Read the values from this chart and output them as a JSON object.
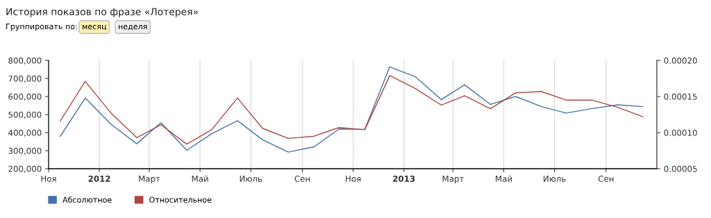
{
  "chart_data": {
    "type": "line",
    "title": "История показов по фразе «Лотерея»",
    "annotations": [
      "Группировать по:",
      "месяц",
      "неделя"
    ],
    "x": [
      "2011-11-15",
      "2011-12-15",
      "2012-01-15",
      "2012-02-15",
      "2012-03-15",
      "2012-04-15",
      "2012-05-15",
      "2012-06-15",
      "2012-07-15",
      "2012-08-15",
      "2012-09-15",
      "2012-10-15",
      "2012-11-15",
      "2012-12-15",
      "2013-01-15",
      "2013-02-15",
      "2013-03-15",
      "2013-04-15",
      "2013-05-15",
      "2013-06-15",
      "2013-07-15",
      "2013-08-15",
      "2013-09-15",
      "2013-10-15"
    ],
    "series": [
      {
        "name": "Абсолютное",
        "color": "#4572a7",
        "values": [
          379000,
          592000,
          446000,
          338000,
          455000,
          302000,
          394000,
          466000,
          361000,
          292000,
          321000,
          420000,
          418000,
          764000,
          709000,
          583000,
          665000,
          556000,
          600000,
          545000,
          508000,
          533000,
          554000,
          544000
        ]
      },
      {
        "name": "Относительное",
        "color": "#aa4643",
        "axis": "y2",
        "values": [
          0.000116,
          0.000171,
          0.000127,
          9.3e-05,
          0.000111,
          8.4e-05,
          0.000104,
          0.000148,
          0.000106,
          9.2e-05,
          9.5e-05,
          0.000107,
          0.000104,
          0.000179,
          0.000161,
          0.000138,
          0.000151,
          0.000133,
          0.000155,
          0.000157,
          0.000145,
          0.000145,
          0.000135,
          0.000122
        ]
      }
    ],
    "xlim": [
      "2011-11-01",
      "2013-11-01"
    ],
    "xticks": [
      {
        "value": "2011-11-01",
        "label": "Ноя"
      },
      {
        "value": "2012-01-01",
        "label": "2012"
      },
      {
        "value": "2012-03-01",
        "label": "Март"
      },
      {
        "value": "2012-05-01",
        "label": "Май"
      },
      {
        "value": "2012-07-01",
        "label": "Июль"
      },
      {
        "value": "2012-09-01",
        "label": "Сен"
      },
      {
        "value": "2012-11-01",
        "label": "Ноя"
      },
      {
        "value": "2013-01-01",
        "label": "2013"
      },
      {
        "value": "2013-03-01",
        "label": "Март"
      },
      {
        "value": "2013-05-01",
        "label": "Май"
      },
      {
        "value": "2013-07-01",
        "label": "Июль"
      },
      {
        "value": "2013-09-01",
        "label": "Сен"
      }
    ],
    "ylim": [
      200000,
      800000
    ],
    "yticks": [
      {
        "value": 200000,
        "label": "200,000"
      },
      {
        "value": 300000,
        "label": "300,000"
      },
      {
        "value": 400000,
        "label": "400,000"
      },
      {
        "value": 500000,
        "label": "500,000"
      },
      {
        "value": 600000,
        "label": "600,000"
      },
      {
        "value": 700000,
        "label": "700,000"
      },
      {
        "value": 800000,
        "label": "800,000"
      }
    ],
    "y2lim": [
      5e-05,
      0.0002
    ],
    "y2ticks": [
      {
        "value": 5e-05,
        "label": "0.00005"
      },
      {
        "value": 0.0001,
        "label": "0.00010"
      },
      {
        "value": 0.00015,
        "label": "0.00015"
      },
      {
        "value": 0.0002,
        "label": "0.00020"
      }
    ],
    "grid": "x",
    "legend": "bottom left",
    "marker": "none",
    "line_style": "solid"
  }
}
